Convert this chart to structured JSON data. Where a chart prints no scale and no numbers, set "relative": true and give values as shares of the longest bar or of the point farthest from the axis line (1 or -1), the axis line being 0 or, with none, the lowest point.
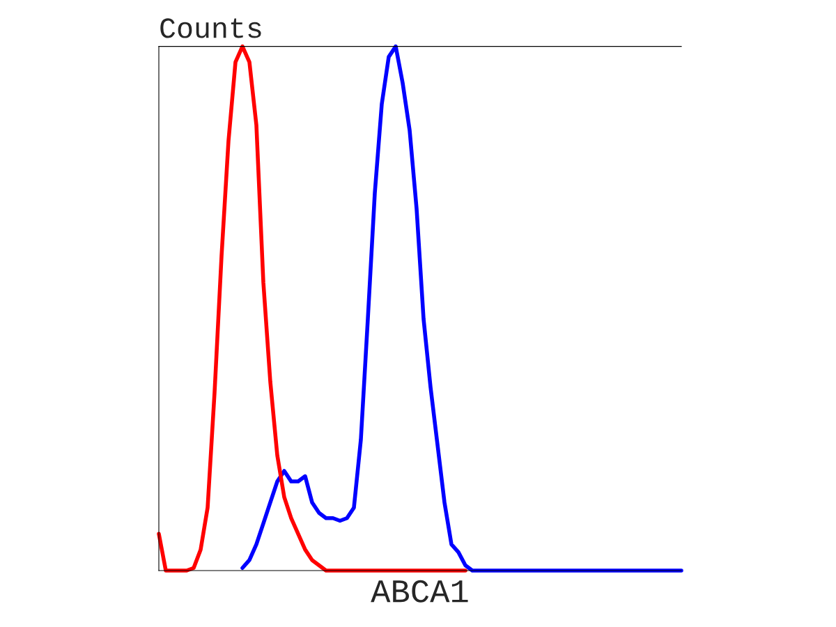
{
  "chart_data": {
    "type": "line",
    "relative": true,
    "ylabel": "Counts",
    "xlabel": "ABCA1",
    "categories": [
      null,
      null,
      null,
      null,
      null,
      null,
      null,
      null,
      null,
      null,
      null,
      null,
      null,
      null,
      null,
      null,
      null,
      null,
      null,
      null,
      null,
      null,
      null,
      null,
      null,
      null,
      null,
      null,
      null,
      null,
      null,
      null,
      null,
      null,
      null,
      null,
      null,
      null,
      null,
      null,
      null,
      null,
      null,
      null,
      null,
      null,
      null,
      null,
      null,
      null,
      null,
      null,
      null,
      null,
      null,
      null,
      null,
      null,
      null,
      null,
      null,
      null,
      null,
      null,
      null,
      null,
      null,
      null,
      null,
      null,
      null,
      null,
      null,
      null,
      null,
      null
    ],
    "series": [
      {
        "color": "#0000ff",
        "values": [
          null,
          null,
          null,
          null,
          null,
          null,
          null,
          null,
          null,
          null,
          null,
          null,
          0.005,
          0.02,
          0.05,
          0.09,
          0.13,
          0.17,
          0.19,
          0.17,
          0.17,
          0.18,
          0.13,
          0.11,
          0.1,
          0.1,
          0.095,
          0.1,
          0.12,
          0.25,
          0.48,
          0.72,
          0.89,
          0.98,
          1.0,
          0.93,
          0.84,
          0.69,
          0.48,
          0.35,
          0.24,
          0.13,
          0.05,
          0.035,
          0.01,
          0,
          0,
          0,
          0,
          0,
          0,
          0,
          0,
          0,
          0,
          0,
          0,
          0,
          0,
          0,
          0,
          0,
          0,
          0,
          0,
          0,
          0,
          0,
          0,
          0,
          0,
          0,
          0,
          0,
          0,
          0
        ]
      },
      {
        "color": "#ff0000",
        "values": [
          0.07,
          0,
          0,
          0,
          0,
          0.005,
          0.04,
          0.12,
          0.34,
          0.6,
          0.82,
          0.97,
          1.0,
          0.97,
          0.85,
          0.55,
          0.36,
          0.22,
          0.14,
          0.1,
          0.07,
          0.04,
          0.02,
          0.01,
          0,
          0,
          0,
          0,
          0,
          0,
          0,
          0,
          0,
          0,
          0,
          0,
          0,
          0,
          0,
          0,
          0,
          0,
          0,
          0,
          0,
          null,
          null,
          null,
          null,
          null,
          null,
          null,
          null,
          null,
          null,
          null,
          null,
          null,
          null,
          null,
          null,
          null,
          null,
          null,
          null,
          null,
          null,
          null,
          null,
          null,
          null,
          null,
          null,
          null,
          null,
          null
        ]
      }
    ]
  }
}
